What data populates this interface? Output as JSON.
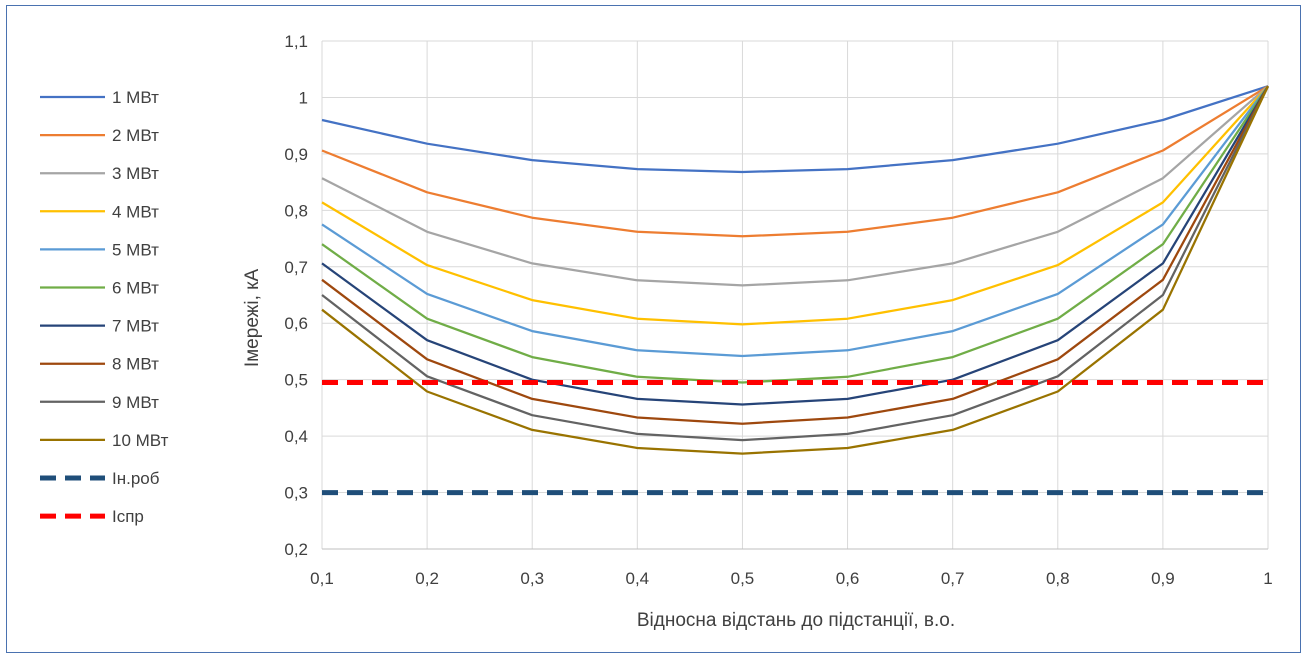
{
  "chart_data": {
    "type": "line",
    "title": "",
    "xlabel": "Відносна відстань до підстанції, в.о.",
    "ylabel": "Iмережі, кА",
    "x": [
      0.1,
      0.2,
      0.3,
      0.4,
      0.5,
      0.6,
      0.7,
      0.8,
      0.9,
      1
    ],
    "x_tick_labels": [
      "0,1",
      "0,2",
      "0,3",
      "0,4",
      "0,5",
      "0,6",
      "0,7",
      "0,8",
      "0,9",
      "1"
    ],
    "y_tick_labels": [
      "0,2",
      "0,3",
      "0,4",
      "0,5",
      "0,6",
      "0,7",
      "0,8",
      "0,9",
      "1",
      "1,1"
    ],
    "xlim": [
      0.1,
      1
    ],
    "ylim": [
      0.2,
      1.1
    ],
    "grid": "horizontal",
    "legend_position": "left",
    "series": [
      {
        "name": "1 МВт",
        "color": "#4472c4",
        "dashed": false,
        "values": [
          0.96,
          0.918,
          0.889,
          0.873,
          0.868,
          0.873,
          0.889,
          0.918,
          0.96,
          1.02
        ]
      },
      {
        "name": "2 МВт",
        "color": "#ed7d31",
        "dashed": false,
        "values": [
          0.906,
          0.832,
          0.787,
          0.762,
          0.754,
          0.762,
          0.787,
          0.832,
          0.906,
          1.02
        ]
      },
      {
        "name": "3 МВт",
        "color": "#a5a5a5",
        "dashed": false,
        "values": [
          0.857,
          0.762,
          0.706,
          0.676,
          0.667,
          0.676,
          0.706,
          0.762,
          0.857,
          1.02
        ]
      },
      {
        "name": "4 МВт",
        "color": "#ffc000",
        "dashed": false,
        "values": [
          0.814,
          0.703,
          0.641,
          0.608,
          0.598,
          0.608,
          0.641,
          0.703,
          0.814,
          1.02
        ]
      },
      {
        "name": "5 МВт",
        "color": "#5b9bd5",
        "dashed": false,
        "values": [
          0.775,
          0.652,
          0.586,
          0.552,
          0.542,
          0.552,
          0.586,
          0.652,
          0.775,
          1.02
        ]
      },
      {
        "name": "6 МВт",
        "color": "#70ad47",
        "dashed": false,
        "values": [
          0.74,
          0.608,
          0.54,
          0.505,
          0.495,
          0.505,
          0.54,
          0.608,
          0.74,
          1.02
        ]
      },
      {
        "name": "7 МВт",
        "color": "#264478",
        "dashed": false,
        "values": [
          0.706,
          0.57,
          0.5,
          0.466,
          0.456,
          0.466,
          0.5,
          0.57,
          0.706,
          1.02
        ]
      },
      {
        "name": "8 МВт",
        "color": "#9e480e",
        "dashed": false,
        "values": [
          0.677,
          0.536,
          0.466,
          0.433,
          0.422,
          0.433,
          0.466,
          0.536,
          0.677,
          1.02
        ]
      },
      {
        "name": "9 МВт",
        "color": "#636363",
        "dashed": false,
        "values": [
          0.65,
          0.506,
          0.437,
          0.404,
          0.393,
          0.404,
          0.437,
          0.506,
          0.65,
          1.02
        ]
      },
      {
        "name": "10 МВт",
        "color": "#997300",
        "dashed": false,
        "values": [
          0.624,
          0.479,
          0.411,
          0.379,
          0.369,
          0.379,
          0.411,
          0.479,
          0.624,
          1.02
        ]
      },
      {
        "name": "Iн.роб",
        "color": "#1f4e79",
        "dashed": true,
        "values": [
          0.3,
          0.3,
          0.3,
          0.3,
          0.3,
          0.3,
          0.3,
          0.3,
          0.3,
          0.3
        ]
      },
      {
        "name": "Iспр",
        "color": "#ff0000",
        "dashed": true,
        "values": [
          0.495,
          0.495,
          0.495,
          0.495,
          0.495,
          0.495,
          0.495,
          0.495,
          0.495,
          0.495
        ]
      }
    ]
  }
}
